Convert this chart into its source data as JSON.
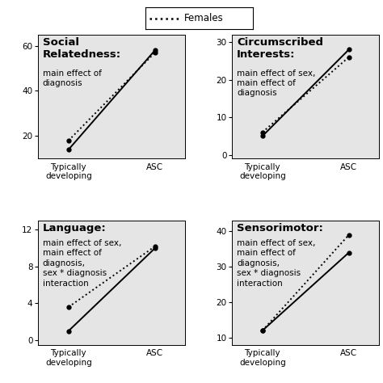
{
  "panels": [
    {
      "title": "Social\nRelatedness:",
      "subtitle": "main effect of\ndiagnosis",
      "title_lines": 2,
      "males": [
        14,
        58
      ],
      "females": [
        18,
        57
      ],
      "ylim": [
        10,
        65
      ],
      "yticks": [
        20,
        40,
        60
      ],
      "xlabel": [
        "Typically\ndeveloping",
        "ASC"
      ]
    },
    {
      "title": "Circumscribed\nInterests:",
      "subtitle": "main effect of sex,\nmain effect of\ndiagnosis",
      "title_lines": 2,
      "males": [
        5,
        28
      ],
      "females": [
        6,
        26
      ],
      "ylim": [
        -1,
        32
      ],
      "yticks": [
        0,
        10,
        20,
        30
      ],
      "xlabel": [
        "Typically\ndeveloping",
        "ASC"
      ]
    },
    {
      "title": "Language:",
      "subtitle": "main effect of sex,\nmain effect of\ndiagnosis,\nsex * diagnosis\ninteraction",
      "title_lines": 1,
      "males": [
        1.0,
        10.0
      ],
      "females": [
        3.6,
        10.2
      ],
      "ylim": [
        -0.5,
        13
      ],
      "yticks": [
        0,
        4,
        8,
        12
      ],
      "xlabel": [
        "Typically\ndeveloping",
        "ASC"
      ]
    },
    {
      "title": "Sensorimotor:",
      "subtitle": "main effect of sex,\nmain effect of\ndiagnosis,\nsex * diagnosis\ninteraction",
      "title_lines": 1,
      "males": [
        12,
        34
      ],
      "females": [
        12,
        39
      ],
      "ylim": [
        8,
        43
      ],
      "yticks": [
        10,
        20,
        30,
        40
      ],
      "xlabel": [
        "Typically\ndeveloping",
        "ASC"
      ]
    }
  ],
  "bg_color": "#e5e5e5",
  "line_color": "black",
  "marker": "o",
  "markersize": 3.5,
  "linewidth": 1.4,
  "title_fontsize": 9.5,
  "subtitle_fontsize": 7.5,
  "tick_fontsize": 7.5,
  "xtick_fontsize": 7.5,
  "legend_fontsize": 8.5
}
